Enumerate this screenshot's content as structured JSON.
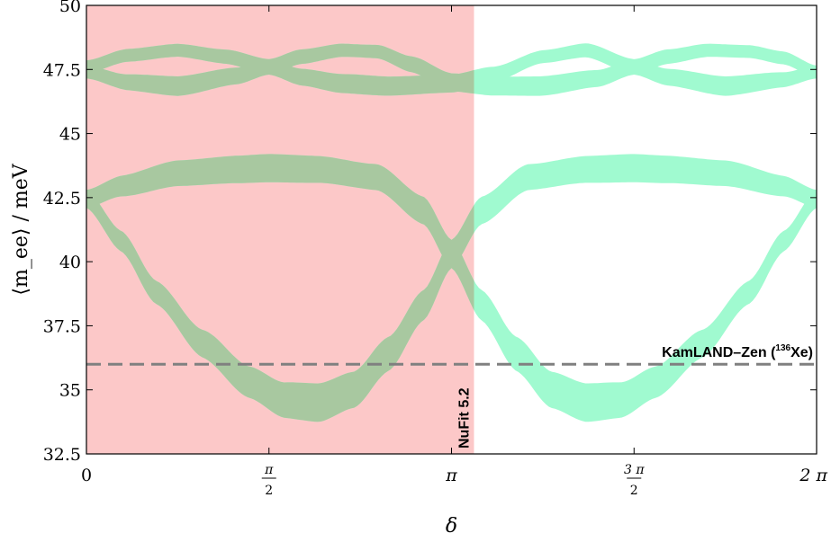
{
  "chart_data": {
    "type": "area",
    "xlabel": "δ",
    "ylabel": "⟨m_ee⟩ / meV",
    "xlim": [
      0,
      6.2832
    ],
    "ylim": [
      32.5,
      50
    ],
    "xticks": [
      {
        "value": 0,
        "label": "0"
      },
      {
        "value": 1.5708,
        "num": "π",
        "den": "2"
      },
      {
        "value": 3.1416,
        "label": "π"
      },
      {
        "value": 4.7124,
        "num": "3 π",
        "den": "2"
      },
      {
        "value": 6.2832,
        "label": "2 π"
      }
    ],
    "yticks": [
      {
        "value": 32.5,
        "label": "32.5"
      },
      {
        "value": 35,
        "label": "35"
      },
      {
        "value": 37.5,
        "label": "37.5"
      },
      {
        "value": 40,
        "label": "40"
      },
      {
        "value": 42.5,
        "label": "42.5"
      },
      {
        "value": 45,
        "label": "45"
      },
      {
        "value": 47.5,
        "label": "47.5"
      },
      {
        "value": 50,
        "label": "50"
      }
    ],
    "shaded_region": {
      "x": [
        0,
        3.335
      ],
      "label": "NuFit 5.2",
      "color": "#fcc8c8"
    },
    "reference_line": {
      "y": 36.0,
      "label": "KamLAND–Zen (",
      "label_sup": "136",
      "label_tail": "Xe)",
      "color": "#808080",
      "style": "dashed"
    },
    "band_color": "#a0fad0",
    "band_overlap_color": "#a8c8a0",
    "bands": [
      {
        "center": [
          [
            0,
            47.4
          ],
          [
            0.35,
            47.0
          ],
          [
            0.785,
            46.85
          ],
          [
            1.3,
            47.25
          ],
          [
            1.5708,
            47.6
          ],
          [
            1.85,
            48.0
          ],
          [
            2.2,
            48.25
          ],
          [
            2.5,
            48.2
          ],
          [
            2.8,
            47.7
          ],
          [
            3.1416,
            47.0
          ],
          [
            3.48,
            46.85
          ],
          [
            3.9,
            46.85
          ],
          [
            4.4,
            47.15
          ],
          [
            4.7124,
            47.6
          ],
          [
            5.0,
            48.0
          ],
          [
            5.35,
            48.25
          ],
          [
            5.7,
            48.2
          ],
          [
            6.0,
            47.95
          ],
          [
            6.2832,
            47.4
          ]
        ],
        "width": [
          [
            0,
            0.25
          ],
          [
            0.785,
            0.38
          ],
          [
            1.5708,
            0.3
          ],
          [
            2.356,
            0.25
          ],
          [
            3.1416,
            0.35
          ],
          [
            3.927,
            0.38
          ],
          [
            4.7124,
            0.3
          ],
          [
            5.498,
            0.25
          ],
          [
            6.2832,
            0.25
          ]
        ]
      },
      {
        "center": [
          [
            0,
            47.6
          ],
          [
            0.35,
            48.05
          ],
          [
            0.785,
            48.25
          ],
          [
            1.2,
            48.0
          ],
          [
            1.5708,
            47.6
          ],
          [
            1.85,
            47.2
          ],
          [
            2.2,
            46.95
          ],
          [
            2.6,
            46.85
          ],
          [
            3.1416,
            46.95
          ],
          [
            3.5,
            47.3
          ],
          [
            3.927,
            48.0
          ],
          [
            4.3,
            48.25
          ],
          [
            4.7124,
            47.6
          ],
          [
            5.0,
            47.2
          ],
          [
            5.5,
            46.85
          ],
          [
            6.0,
            47.1
          ],
          [
            6.2832,
            47.4
          ]
        ],
        "width": [
          [
            0,
            0.25
          ],
          [
            0.785,
            0.25
          ],
          [
            1.5708,
            0.3
          ],
          [
            2.356,
            0.38
          ],
          [
            3.1416,
            0.35
          ],
          [
            3.927,
            0.25
          ],
          [
            4.7124,
            0.3
          ],
          [
            5.498,
            0.38
          ],
          [
            6.2832,
            0.25
          ]
        ]
      },
      {
        "center": [
          [
            0,
            42.45
          ],
          [
            0.3,
            42.95
          ],
          [
            0.785,
            43.45
          ],
          [
            1.3,
            43.6
          ],
          [
            1.5708,
            43.65
          ],
          [
            2.0,
            43.6
          ],
          [
            2.5,
            43.3
          ],
          [
            2.9,
            42.0
          ],
          [
            3.1416,
            40.3
          ],
          [
            3.4,
            38.3
          ],
          [
            3.7,
            36.4
          ],
          [
            4.0,
            35.0
          ],
          [
            4.3,
            34.5
          ],
          [
            4.6,
            34.6
          ],
          [
            4.9,
            35.3
          ],
          [
            5.3,
            36.8
          ],
          [
            5.7,
            38.8
          ],
          [
            6.0,
            40.8
          ],
          [
            6.2832,
            42.45
          ]
        ],
        "width": [
          [
            0,
            0.35
          ],
          [
            0.785,
            0.5
          ],
          [
            1.5708,
            0.55
          ],
          [
            2.356,
            0.5
          ],
          [
            3.1416,
            0.55
          ],
          [
            3.927,
            0.7
          ],
          [
            4.3,
            0.75
          ],
          [
            5.0,
            0.6
          ],
          [
            5.7,
            0.45
          ],
          [
            6.2832,
            0.35
          ]
        ]
      },
      {
        "center": [
          [
            0,
            42.45
          ],
          [
            0.3,
            40.8
          ],
          [
            0.6,
            38.8
          ],
          [
            1.0,
            36.8
          ],
          [
            1.4,
            35.3
          ],
          [
            1.7,
            34.6
          ],
          [
            2.0,
            34.5
          ],
          [
            2.3,
            35.0
          ],
          [
            2.6,
            36.4
          ],
          [
            2.9,
            38.3
          ],
          [
            3.1416,
            40.3
          ],
          [
            3.4,
            42.0
          ],
          [
            3.8,
            43.3
          ],
          [
            4.3,
            43.6
          ],
          [
            4.7124,
            43.65
          ],
          [
            5.0,
            43.6
          ],
          [
            5.5,
            43.45
          ],
          [
            6.0,
            42.95
          ],
          [
            6.2832,
            42.45
          ]
        ],
        "width": [
          [
            0,
            0.35
          ],
          [
            0.6,
            0.45
          ],
          [
            1.3,
            0.6
          ],
          [
            2.0,
            0.75
          ],
          [
            2.35,
            0.7
          ],
          [
            3.1416,
            0.55
          ],
          [
            3.927,
            0.5
          ],
          [
            4.7124,
            0.55
          ],
          [
            5.498,
            0.5
          ],
          [
            6.2832,
            0.35
          ]
        ]
      }
    ],
    "grid": false
  }
}
